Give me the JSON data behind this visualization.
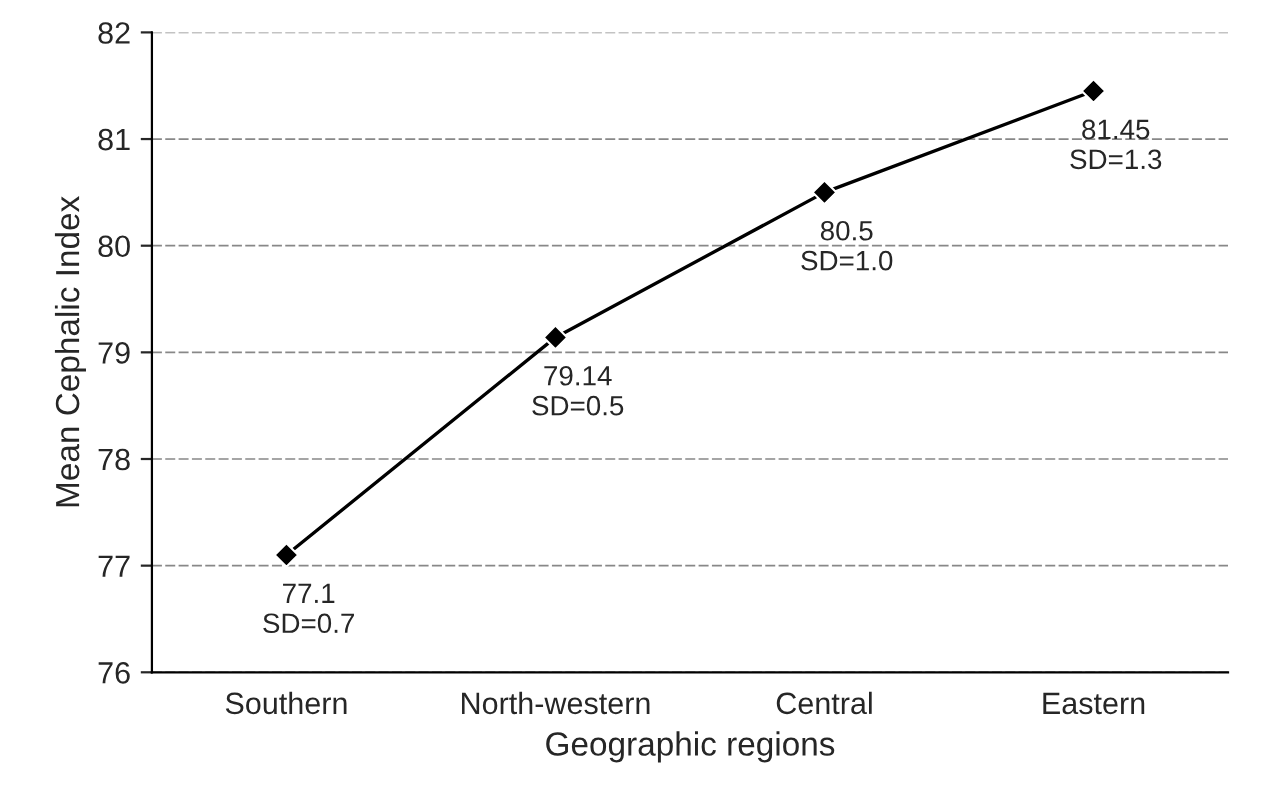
{
  "chart_data": {
    "type": "line",
    "xlabel": "Geographic regions",
    "ylabel": "Mean Cephalic Index",
    "categories": [
      "Southern",
      "North-western",
      "Central",
      "Eastern"
    ],
    "series": [
      {
        "color": "#000000",
        "values": [
          77.1,
          79.14,
          80.5,
          81.45
        ],
        "value_labels": [
          "77.1\nSD=0.7",
          "79.14\nSD=0.5",
          "80.5\nSD=1.0",
          "81.45\nSD=1.3"
        ]
      }
    ],
    "ylim": [
      76,
      82
    ],
    "yticks": [
      76,
      77,
      78,
      79,
      80,
      81,
      82
    ],
    "grid": "y",
    "marker": "diamond",
    "line_style": "solid"
  }
}
